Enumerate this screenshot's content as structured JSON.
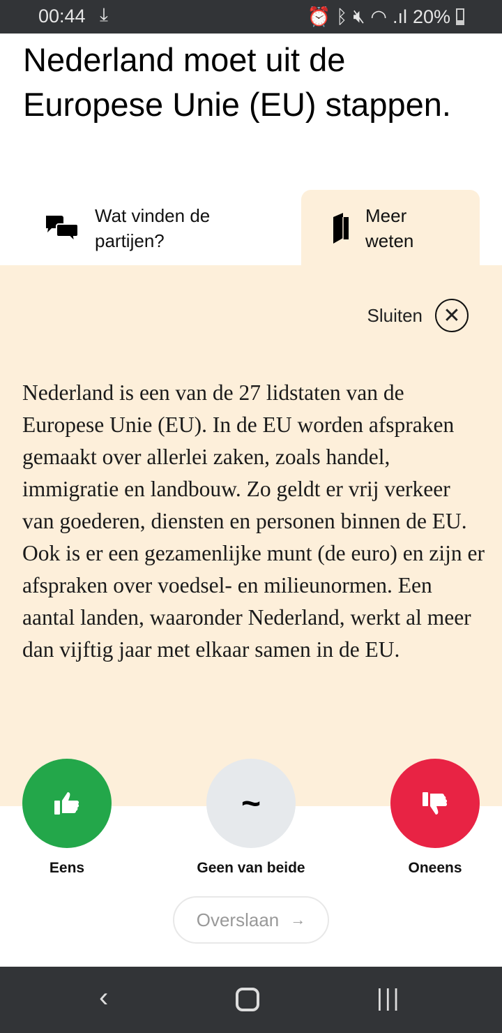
{
  "status_bar": {
    "time": "00:44",
    "battery": "20%"
  },
  "statement": {
    "title": "Nederland moet uit de Europese Unie (EU) stappen."
  },
  "tabs": [
    {
      "label": "Wat vinden de partijen?",
      "icon": "speech-bubbles-icon"
    },
    {
      "label": "Meer weten",
      "icon": "book-icon",
      "active": true
    }
  ],
  "panel": {
    "close_label": "Sluiten",
    "text": "Nederland is een van de 27 lidstaten van de Europese Unie (EU). In de EU worden afspraken gemaakt over allerlei zaken, zoals handel, immigratie en landbouw. Zo geldt er vrij verkeer van goederen, diensten en personen binnen de EU. Ook is er een gezamenlijke munt (de euro) en zijn er afspraken over voedsel- en milieunormen. Een aantal landen, waaronder Nederland, werkt al meer dan vijftig jaar met elkaar samen in de EU."
  },
  "votes": [
    {
      "label": "Eens",
      "color": "#23a74a"
    },
    {
      "label": "Geen van beide",
      "symbol": "~",
      "color": "#e6e9ec"
    },
    {
      "label": "Oneens",
      "color": "#e82344"
    }
  ],
  "skip": {
    "label": "Overslaan",
    "arrow": "→"
  },
  "colors": {
    "panel": "#fdefda"
  }
}
